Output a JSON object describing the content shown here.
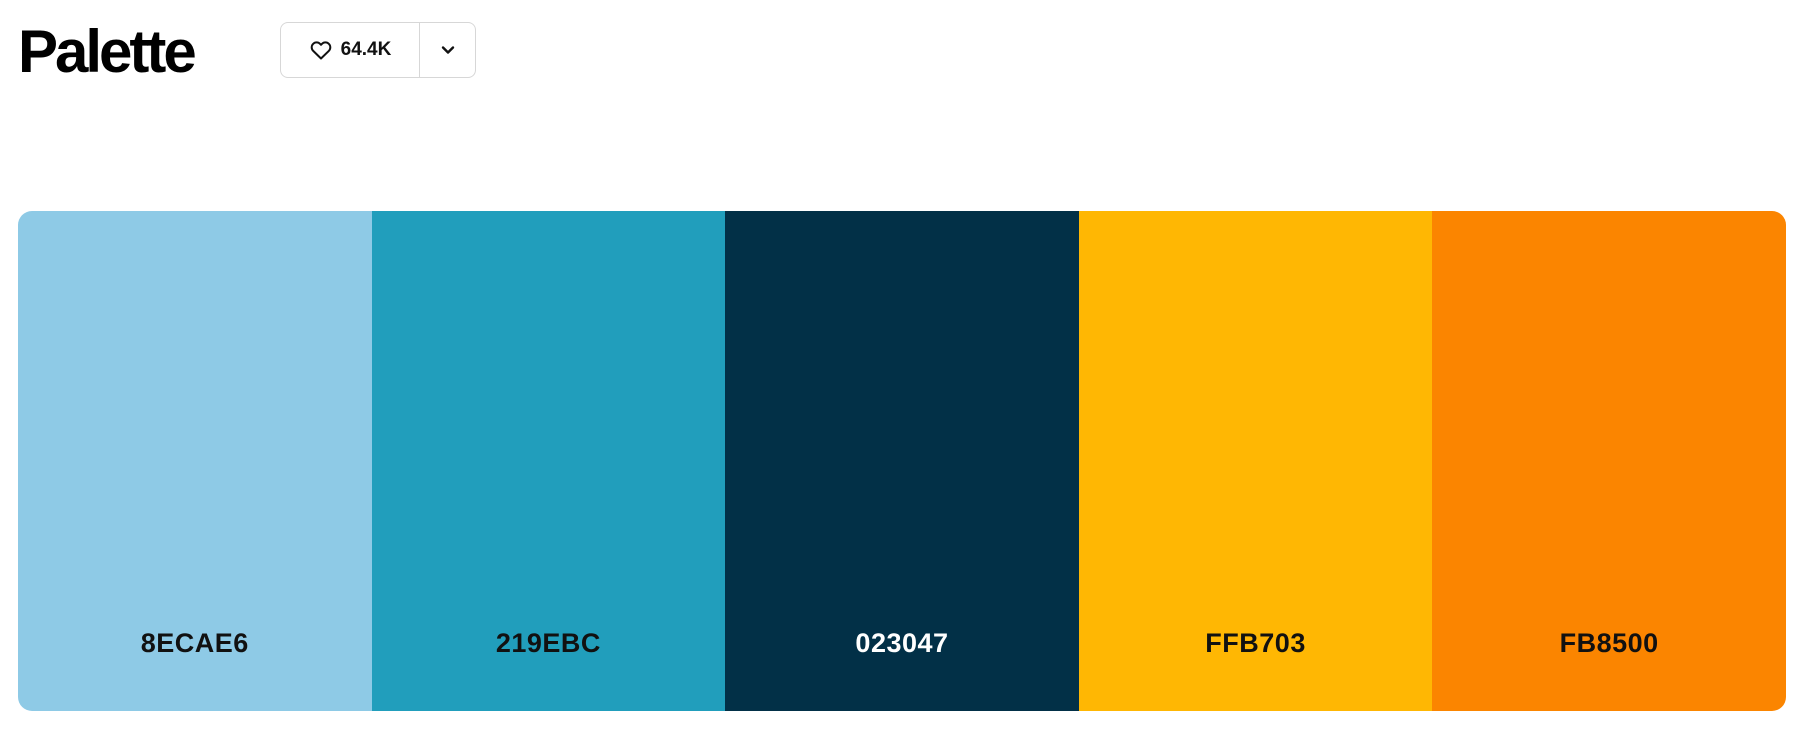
{
  "header": {
    "title": "Palette",
    "like_count": "64.4K"
  },
  "icons": {
    "like": "heart-outline-icon",
    "more": "chevron-down-icon"
  },
  "palette": {
    "swatches": [
      {
        "code": "8ECAE6",
        "color": "#8ECAE6",
        "text_color": "#111111"
      },
      {
        "code": "219EBC",
        "color": "#219EBC",
        "text_color": "#111111"
      },
      {
        "code": "023047",
        "color": "#023047",
        "text_color": "#ffffff"
      },
      {
        "code": "FFB703",
        "color": "#FFB703",
        "text_color": "#111111"
      },
      {
        "code": "FB8500",
        "color": "#FB8500",
        "text_color": "#111111"
      }
    ]
  }
}
